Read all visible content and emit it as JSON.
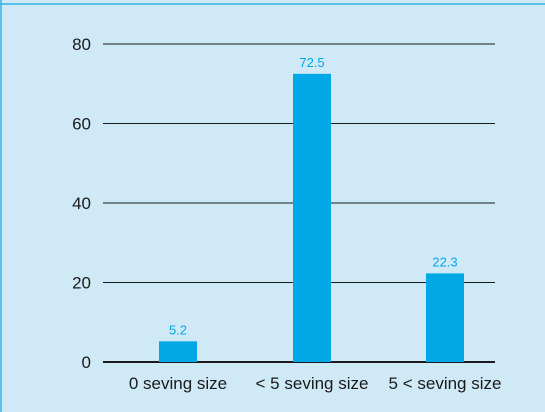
{
  "chart_data": {
    "type": "bar",
    "title": "",
    "xlabel": "",
    "ylabel": "",
    "categories": [
      "0 seving size",
      "< 5 seving size",
      "5 < seving size"
    ],
    "values": [
      5.2,
      72.5,
      22.3
    ],
    "data_labels": [
      "5.2",
      "72.5",
      "22.3"
    ],
    "y_ticks": [
      "0",
      "20",
      "40",
      "60",
      "80"
    ],
    "ylim": [
      0,
      80
    ],
    "grid": true,
    "legend": "none",
    "colors": {
      "bar": "#00a9e6",
      "data_label": "#00a9e6",
      "grid": "#1a1a1a",
      "frame": "#33b5e5",
      "background": "#cfe9f7"
    }
  }
}
